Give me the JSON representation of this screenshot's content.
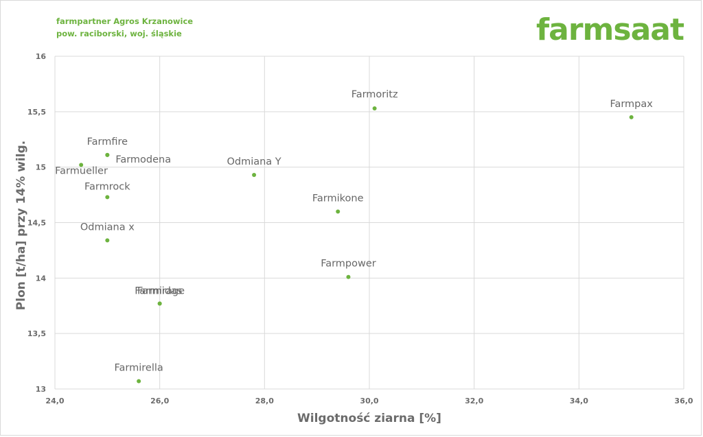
{
  "header": {
    "line1": "farmpartner Agros Krzanowice",
    "line2": "pow. raciborski, woj. śląskie"
  },
  "brand": {
    "logo_text": "farmsaat",
    "color": "#6db33f"
  },
  "chart_data": {
    "type": "scatter",
    "xlabel": "Wilgotność ziarna [%]",
    "ylabel": "Plon [t/ha] przy 14% wilg.",
    "xlim": [
      24,
      36
    ],
    "ylim": [
      13,
      16
    ],
    "xticks": [
      24,
      26,
      28,
      30,
      32,
      34,
      36
    ],
    "yticks": [
      13,
      13.5,
      14,
      14.5,
      15,
      15.5,
      16
    ],
    "xtick_labels": [
      "24,0",
      "26,0",
      "28,0",
      "30,0",
      "32,0",
      "34,0",
      "36,0"
    ],
    "ytick_labels": [
      "13",
      "13,5",
      "14",
      "14,5",
      "15",
      "15,5",
      "16"
    ],
    "grid": true,
    "marker_color": "#6db33f",
    "points": [
      {
        "label": "Farmoritz",
        "x": 30.1,
        "y": 15.53
      },
      {
        "label": "Farmpax",
        "x": 35.0,
        "y": 15.45
      },
      {
        "label": "Farmfire",
        "x": 25.0,
        "y": 15.11
      },
      {
        "label": "Farmodena",
        "x": 25.0,
        "y": 15.11
      },
      {
        "label": "Farmueller",
        "x": 24.5,
        "y": 15.02
      },
      {
        "label": "Odmiana Y",
        "x": 27.8,
        "y": 14.93
      },
      {
        "label": "Farmrock",
        "x": 25.0,
        "y": 14.73
      },
      {
        "label": "Farmikone",
        "x": 29.4,
        "y": 14.6
      },
      {
        "label": "Odmiana x",
        "x": 25.0,
        "y": 14.34
      },
      {
        "label": "Farmpower",
        "x": 29.6,
        "y": 14.01
      },
      {
        "label": "Farmirage",
        "x": 26.0,
        "y": 13.77
      },
      {
        "label": "Farmidas",
        "x": 26.0,
        "y": 13.77
      },
      {
        "label": "Farmirella",
        "x": 25.6,
        "y": 13.07
      }
    ]
  }
}
